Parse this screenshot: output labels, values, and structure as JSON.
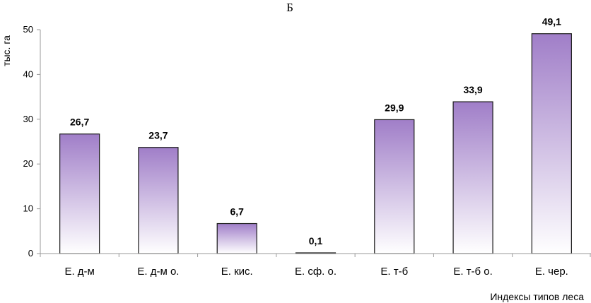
{
  "chart_data": {
    "type": "bar",
    "title": "Б",
    "xlabel": "Индексы типов леса",
    "ylabel": "тыс. га",
    "categories": [
      "Е. д-м",
      "Е. д-м о.",
      "Е. кис.",
      "Е. сф. о.",
      "Е. т-б",
      "Е. т-б о.",
      "Е. чер."
    ],
    "values": [
      26.7,
      23.7,
      6.7,
      0.1,
      29.9,
      33.9,
      49.1
    ],
    "value_labels": [
      "26,7",
      "23,7",
      "6,7",
      "0,1",
      "29,9",
      "33,9",
      "49,1"
    ],
    "ylim": [
      0,
      50
    ],
    "yticks": [
      0,
      10,
      20,
      30,
      40,
      50
    ],
    "grid": false,
    "legend": "none",
    "colors": {
      "bar_top": "#a07ec8",
      "bar_bottom": "#ffffff",
      "bar_border": "#1a1a1a",
      "axis": "#999999"
    }
  }
}
